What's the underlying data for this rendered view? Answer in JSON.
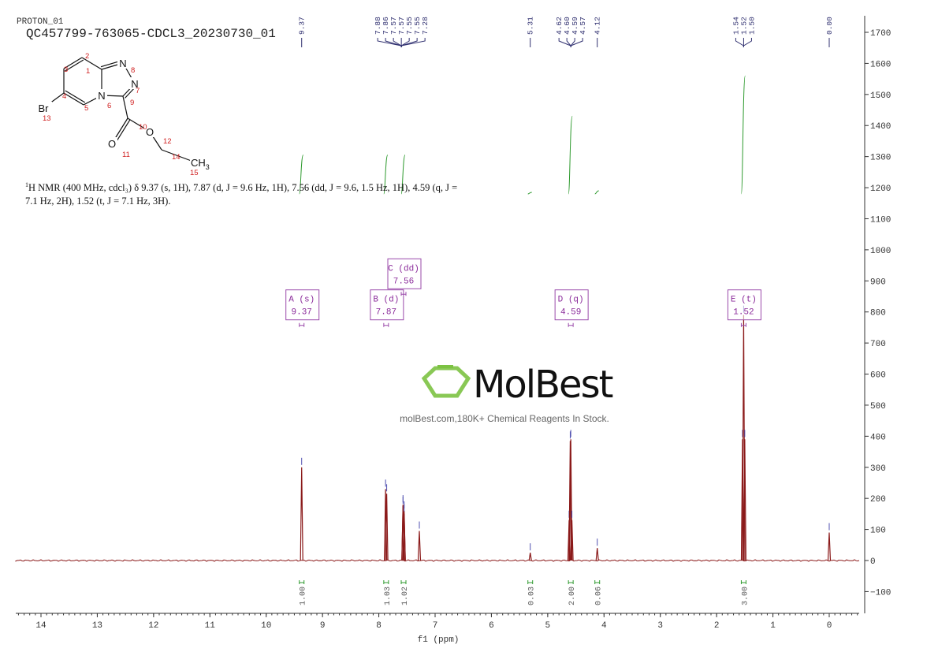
{
  "header": {
    "experiment": "PROTON_01",
    "sample": "QC457799-763065-CDCL3_20230730_01"
  },
  "description": {
    "nucleus_sup": "1",
    "text": "H NMR (400 MHz, cdcl₃) δ 9.37 (s, 1H), 7.87 (d, J = 9.6 Hz, 1H), 7.56 (dd, J = 9.6, 1.5 Hz, 1H), 4.59 (q, J = 7.1 Hz, 2H), 1.52 (t, J = 7.1 Hz, 3H)."
  },
  "structure": {
    "atoms": [
      "N",
      "N",
      "N",
      "Br",
      "O",
      "O",
      "CH3"
    ],
    "numbers": [
      "1",
      "2",
      "3",
      "4",
      "5",
      "6",
      "7",
      "8",
      "9",
      "10",
      "11",
      "12",
      "13",
      "14",
      "15"
    ]
  },
  "watermark": {
    "logo": "MolBest",
    "tagline": "molBest.com,180K+ Chemical Reagents In Stock."
  },
  "colors": {
    "spectrum": "#8b1a1a",
    "integral": "#2e9a2e",
    "peak_label": "#303070",
    "multiplet": "#9a4aaa",
    "logo_green": "#7cc242"
  },
  "chart_data": {
    "type": "line",
    "xlabel": "f1 (ppm)",
    "xlim": [
      14.45,
      -0.53
    ],
    "ylim": [
      -170,
      1750
    ],
    "x_reversed": true,
    "y_axis_side": "right",
    "x_ticks": [
      14,
      13,
      12,
      11,
      10,
      9,
      8,
      7,
      6,
      5,
      4,
      3,
      2,
      1,
      0
    ],
    "y_ticks": [
      -100,
      0,
      100,
      200,
      300,
      400,
      500,
      600,
      700,
      800,
      900,
      1000,
      1100,
      1200,
      1300,
      1400,
      1500,
      1600,
      1700
    ],
    "peaks": [
      {
        "ppm": 9.37,
        "height": 300
      },
      {
        "ppm": 7.88,
        "height": 230
      },
      {
        "ppm": 7.86,
        "height": 215
      },
      {
        "ppm": 7.57,
        "height": 180
      },
      {
        "ppm": 7.57,
        "height": 175
      },
      {
        "ppm": 7.55,
        "height": 160
      },
      {
        "ppm": 7.55,
        "height": 150
      },
      {
        "ppm": 7.28,
        "height": 95
      },
      {
        "ppm": 5.31,
        "height": 25
      },
      {
        "ppm": 4.62,
        "height": 130
      },
      {
        "ppm": 4.6,
        "height": 385
      },
      {
        "ppm": 4.59,
        "height": 390
      },
      {
        "ppm": 4.57,
        "height": 130
      },
      {
        "ppm": 4.12,
        "height": 40
      },
      {
        "ppm": 1.54,
        "height": 390
      },
      {
        "ppm": 1.52,
        "height": 790
      },
      {
        "ppm": 1.5,
        "height": 390
      },
      {
        "ppm": 0.0,
        "height": 90
      }
    ],
    "peak_labels": [
      {
        "group": [
          "9.37"
        ],
        "ppm": 9.37
      },
      {
        "group": [
          "7.88",
          "7.86",
          "7.57",
          "7.57",
          "7.55",
          "7.55",
          "7.28"
        ],
        "ppm": 7.6
      },
      {
        "group": [
          "5.31"
        ],
        "ppm": 5.31
      },
      {
        "group": [
          "4.62",
          "4.60",
          "4.59",
          "4.57"
        ],
        "ppm": 4.59
      },
      {
        "group": [
          "4.12"
        ],
        "ppm": 4.12
      },
      {
        "group": [
          "1.54",
          "1.52",
          "1.50"
        ],
        "ppm": 1.52
      },
      {
        "group": [
          "0.00"
        ],
        "ppm": 0.0
      }
    ],
    "integrals": [
      {
        "ppm": 9.37,
        "value": "1.00",
        "y_start": 1180,
        "y_end": 1305
      },
      {
        "ppm": 7.87,
        "value": "1.03",
        "y_start": 1180,
        "y_end": 1305
      },
      {
        "ppm": 7.56,
        "value": "1.02",
        "y_start": 1180,
        "y_end": 1305
      },
      {
        "ppm": 5.31,
        "value": "0.03",
        "y_start": 1180,
        "y_end": 1185
      },
      {
        "ppm": 4.59,
        "value": "2.00",
        "y_start": 1180,
        "y_end": 1430
      },
      {
        "ppm": 4.12,
        "value": "0.06",
        "y_start": 1180,
        "y_end": 1190
      },
      {
        "ppm": 1.52,
        "value": "3.00",
        "y_start": 1180,
        "y_end": 1560
      }
    ],
    "multiplets": [
      {
        "label": "A (s)",
        "shift": "9.37",
        "ppm": 9.37,
        "level": 800
      },
      {
        "label": "B (d)",
        "shift": "7.87",
        "ppm": 7.87,
        "level": 800
      },
      {
        "label": "C (dd)",
        "shift": "7.56",
        "ppm": 7.56,
        "level": 900
      },
      {
        "label": "D (q)",
        "shift": "4.59",
        "ppm": 4.59,
        "level": 800
      },
      {
        "label": "E (t)",
        "shift": "1.52",
        "ppm": 1.52,
        "level": 800
      }
    ]
  }
}
